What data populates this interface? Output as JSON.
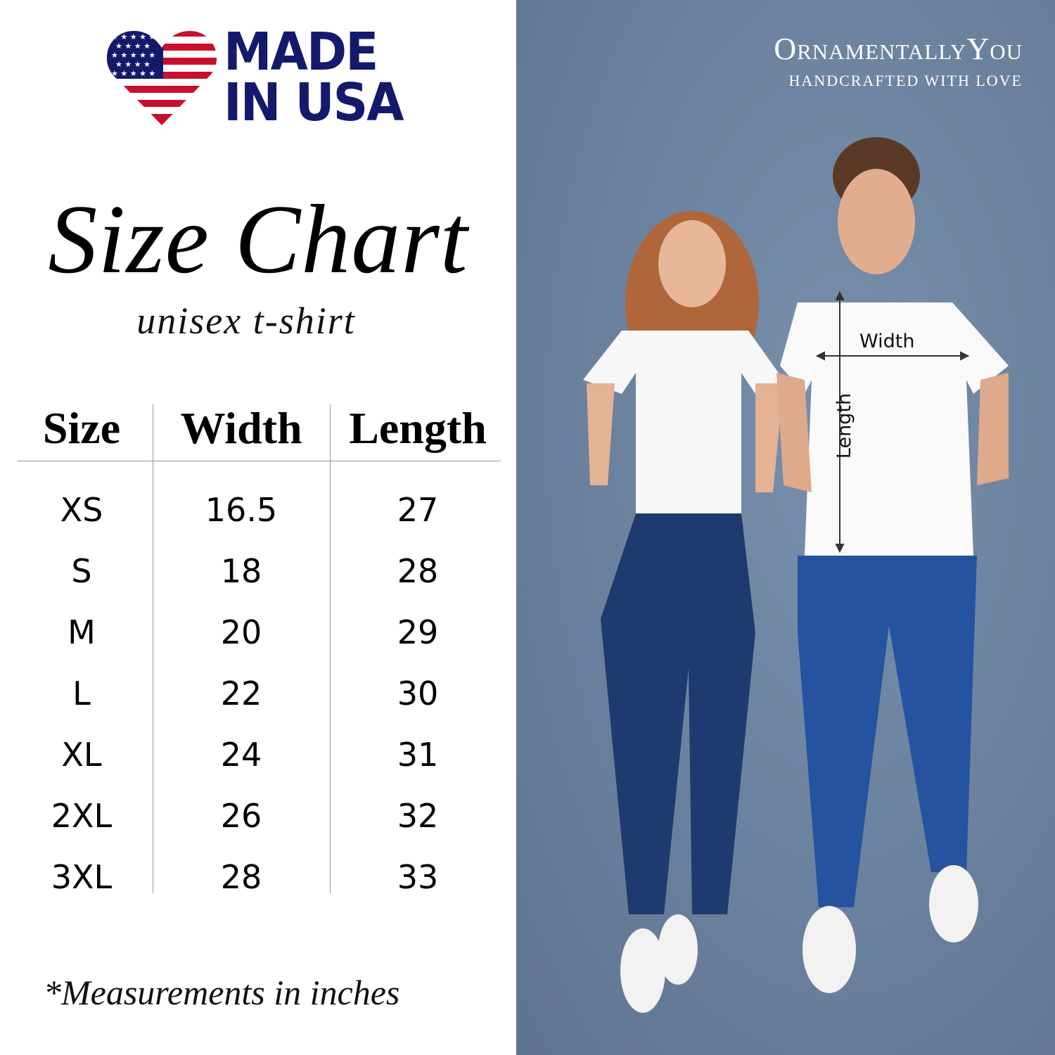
{
  "badge": {
    "line1": "MADE",
    "line2": "IN USA",
    "colors": {
      "navy": "#141a6b",
      "red": "#c8102e"
    }
  },
  "title": "Size Chart",
  "subtitle": "unisex t-shirt",
  "table": {
    "headers": [
      "Size",
      "Width",
      "Length"
    ],
    "rows": [
      [
        "XS",
        "16.5",
        "27"
      ],
      [
        "S",
        "18",
        "28"
      ],
      [
        "M",
        "20",
        "29"
      ],
      [
        "L",
        "22",
        "30"
      ],
      [
        "XL",
        "24",
        "31"
      ],
      [
        "2XL",
        "26",
        "32"
      ],
      [
        "3XL",
        "28",
        "33"
      ]
    ]
  },
  "footnote": "*Measurements in inches",
  "brand": {
    "name": "OrnamentallyYou",
    "tagline": "HANDCRAFTED WITH LOVE"
  },
  "photo": {
    "width_label": "Width",
    "length_label": "Length",
    "background": "#6a819d"
  }
}
